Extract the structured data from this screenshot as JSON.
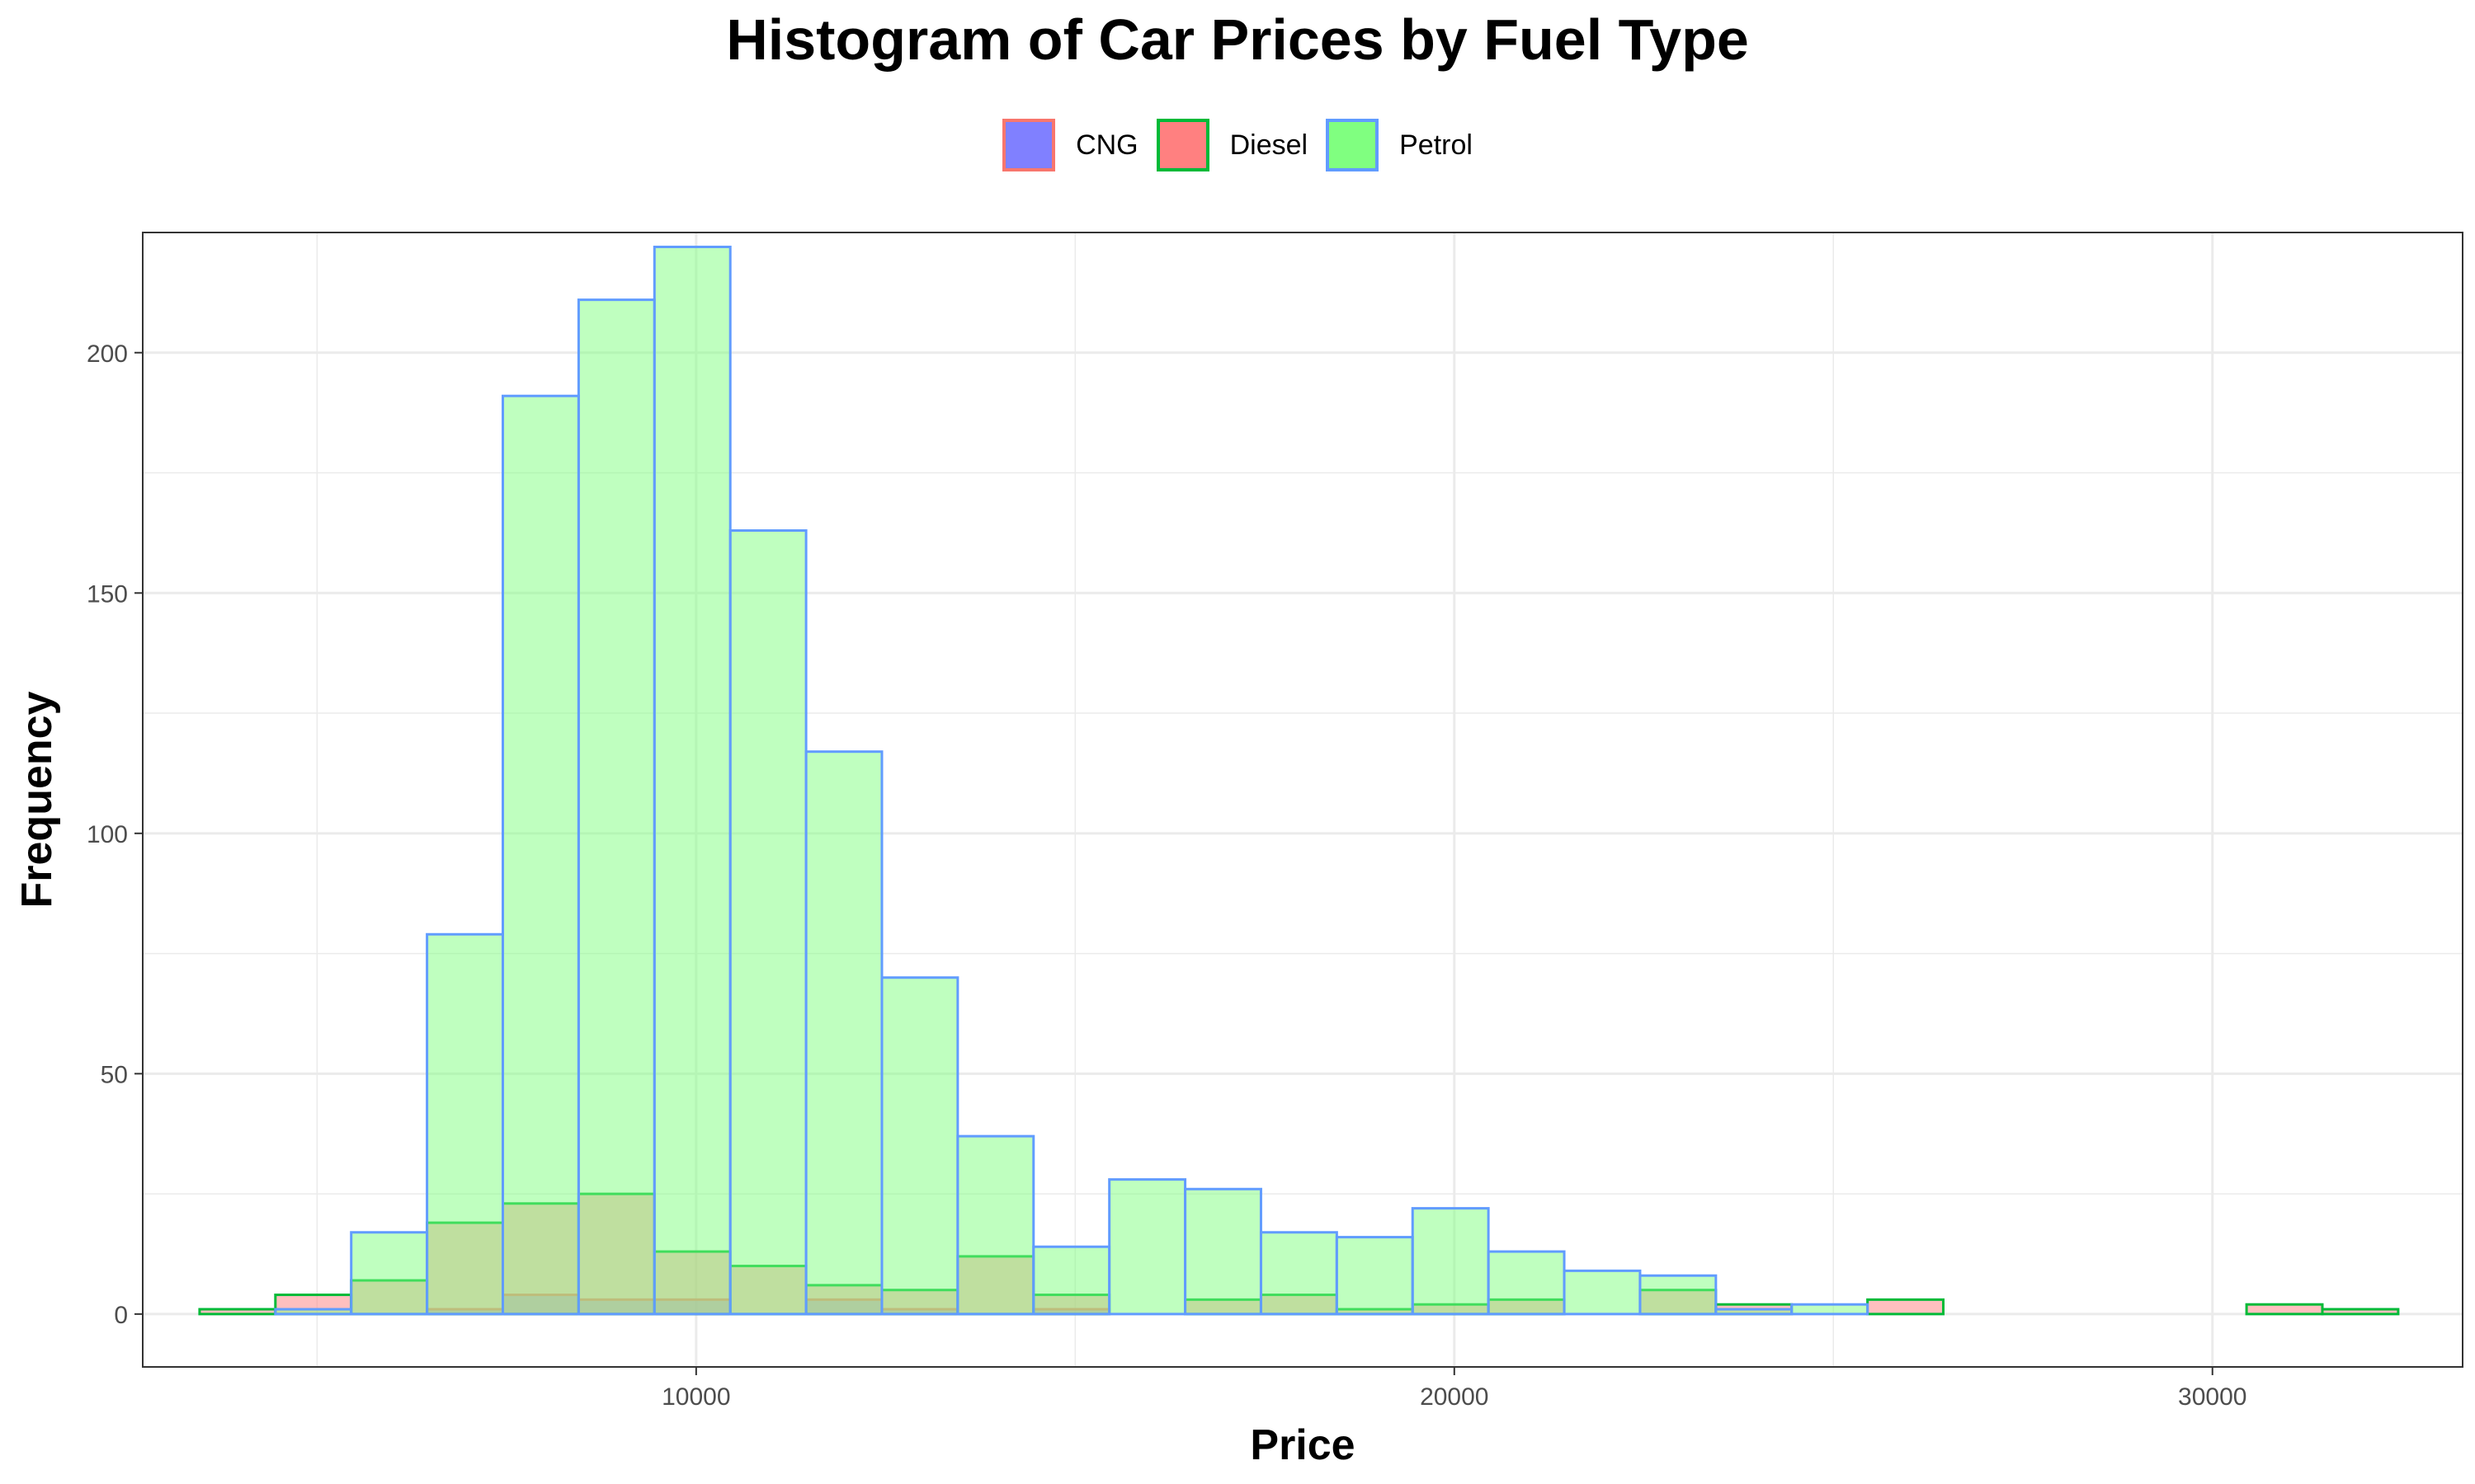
{
  "chart_data": {
    "type": "bar",
    "title": "Histogram of Car Prices by Fuel Type",
    "xlabel": "Price",
    "ylabel": "Frequency",
    "xlim": [
      2700,
      33300
    ],
    "ylim": [
      -11,
      225
    ],
    "x_ticks": [
      10000,
      20000,
      30000
    ],
    "y_ticks": [
      0,
      50,
      100,
      150,
      200
    ],
    "grid": true,
    "legend_position": "top",
    "bin_edges": [
      3450,
      4450,
      5450,
      6450,
      7450,
      8450,
      9450,
      10450,
      11450,
      12450,
      13450,
      14450,
      15450,
      16450,
      17450,
      18450,
      19450,
      20450,
      21450,
      22450,
      23450,
      24450,
      25450,
      26450,
      27450,
      28450,
      29450,
      30450,
      31450,
      32450
    ],
    "series": [
      {
        "name": "CNG",
        "fill": "#8080ff",
        "stroke": "#f8766d",
        "values": [
          0,
          0,
          0,
          1,
          4,
          3,
          3,
          0,
          3,
          1,
          0,
          1,
          0,
          0,
          0,
          0,
          0,
          0,
          0,
          0,
          0,
          0,
          0,
          0,
          0,
          0,
          0,
          0,
          0
        ]
      },
      {
        "name": "Diesel",
        "fill": "#ff8080",
        "stroke": "#00ba38",
        "values": [
          1,
          4,
          7,
          19,
          23,
          25,
          13,
          10,
          6,
          5,
          12,
          4,
          0,
          3,
          4,
          1,
          2,
          3,
          0,
          5,
          2,
          0,
          3,
          0,
          0,
          0,
          0,
          2,
          1
        ]
      },
      {
        "name": "Petrol",
        "fill": "#80ff80",
        "stroke": "#619cff",
        "values": [
          0,
          1,
          17,
          79,
          191,
          211,
          222,
          163,
          117,
          70,
          37,
          14,
          28,
          26,
          17,
          16,
          22,
          13,
          9,
          8,
          1,
          2,
          0,
          0,
          0,
          0,
          0,
          0,
          0
        ]
      }
    ]
  }
}
